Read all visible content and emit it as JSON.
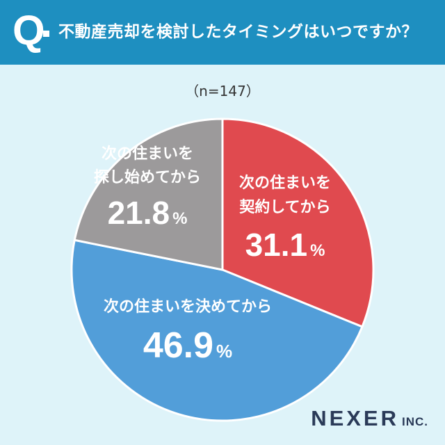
{
  "header": {
    "q_mark": "Q",
    "question": "不動産売却を検討したタイミングはいつですか？"
  },
  "sample_size": "（n=147）",
  "colors": {
    "header_bg": "#1e8fc0",
    "page_bg": "#def3f9",
    "slice_contract": "#e04a4f",
    "slice_decided": "#529ed9",
    "slice_searching": "#9c9a9b"
  },
  "chart_data": {
    "type": "pie",
    "start_angle": "12 o'clock",
    "direction": "clockwise",
    "slices": [
      {
        "label_lines": [
          "次の住まいを",
          "契約してから"
        ],
        "value": 31.1,
        "unit": "%",
        "color": "#e04a4f"
      },
      {
        "label_lines": [
          "次の住まいを決めてから"
        ],
        "value": 46.9,
        "unit": "%",
        "color": "#529ed9"
      },
      {
        "label_lines": [
          "次の住まいを",
          "探し始めてから"
        ],
        "value": 21.8,
        "unit": "%",
        "color": "#9c9a9b"
      }
    ]
  },
  "logo": {
    "main": "NEXER",
    "suffix": "INC."
  }
}
